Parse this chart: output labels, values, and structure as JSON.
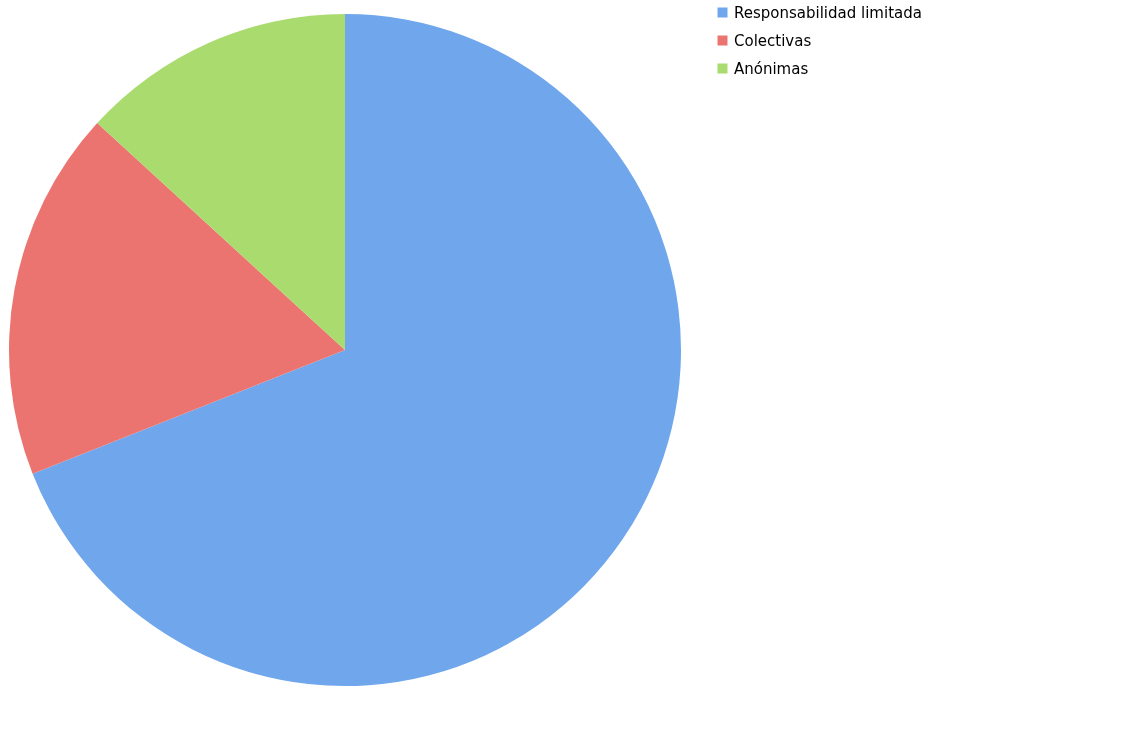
{
  "chart_data": {
    "type": "pie",
    "categories": [
      "Responsabilidad limitada",
      "Colectivas",
      "Anónimas"
    ],
    "values": [
      69,
      17.8,
      13.2
    ],
    "colors": [
      "#6fa6ec",
      "#ec7470",
      "#a9db6f"
    ],
    "legend": "right"
  }
}
